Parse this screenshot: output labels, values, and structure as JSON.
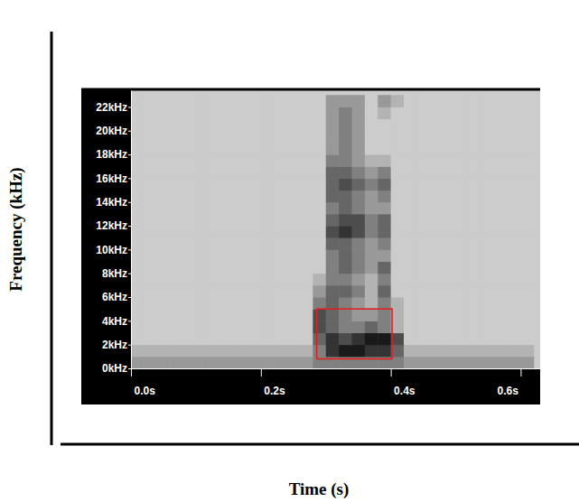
{
  "chart_data": {
    "type": "heatmap",
    "xlabel": "Time (s)",
    "ylabel": "Frequency (kHz)",
    "xlim": [
      0,
      0.63
    ],
    "ylim": [
      0,
      23.4
    ],
    "xticks": [
      {
        "value": 0,
        "label": "0.0s"
      },
      {
        "value": 0.2,
        "label": "0.2s"
      },
      {
        "value": 0.4,
        "label": "0.4s"
      },
      {
        "value": 0.6,
        "label": "0.6s"
      }
    ],
    "yticks": [
      {
        "value": 0,
        "label": "0kHz"
      },
      {
        "value": 2,
        "label": "2kHz"
      },
      {
        "value": 4,
        "label": "4kHz"
      },
      {
        "value": 6,
        "label": "6kHz"
      },
      {
        "value": 8,
        "label": "8kHz"
      },
      {
        "value": 10,
        "label": "10kHz"
      },
      {
        "value": 12,
        "label": "12kHz"
      },
      {
        "value": 14,
        "label": "14kHz"
      },
      {
        "value": 16,
        "label": "16kHz"
      },
      {
        "value": 18,
        "label": "18kHz"
      },
      {
        "value": 20,
        "label": "20kHz"
      },
      {
        "value": 22,
        "label": "22kHz"
      }
    ],
    "x": [
      0.01,
      0.03,
      0.05,
      0.07,
      0.09,
      0.11,
      0.13,
      0.15,
      0.17,
      0.19,
      0.21,
      0.23,
      0.25,
      0.27,
      0.29,
      0.31,
      0.33,
      0.35,
      0.37,
      0.39,
      0.41,
      0.43,
      0.45,
      0.47,
      0.49,
      0.51,
      0.53,
      0.55,
      0.57,
      0.59,
      0.61
    ],
    "y": [
      0.5,
      1.5,
      2.5,
      3.5,
      4.5,
      5.5,
      6.5,
      7.5,
      8.5,
      9.5,
      10.5,
      11.5,
      12.5,
      13.5,
      14.5,
      15.5,
      16.5,
      17.5,
      18.5,
      19.5,
      20.5,
      21.5,
      22.5
    ],
    "zlim": [
      0,
      10
    ],
    "cells": [
      [
        4,
        4,
        4,
        4,
        4,
        4,
        4,
        4,
        4,
        4,
        4,
        4,
        4,
        4,
        5,
        5,
        5,
        5,
        5,
        5,
        5,
        4,
        4,
        4,
        4,
        4,
        4,
        4,
        4,
        4,
        4
      ],
      [
        3,
        3,
        3,
        3,
        3,
        3,
        3,
        3,
        3,
        3,
        3,
        3,
        3,
        3,
        5,
        8,
        9,
        9,
        8,
        8,
        6,
        3,
        3,
        3,
        3,
        3,
        3,
        3,
        3,
        3,
        3
      ],
      [
        2,
        2,
        2,
        2,
        2,
        2,
        2,
        2,
        2,
        2,
        2,
        2,
        2,
        2,
        6,
        8,
        7,
        8,
        9,
        9,
        7,
        2,
        2,
        2,
        2,
        2,
        2,
        2,
        2,
        2,
        2
      ],
      [
        2,
        2,
        2,
        2,
        2,
        2,
        2,
        2,
        2,
        2,
        2,
        2,
        2,
        2,
        7,
        6,
        5,
        5,
        6,
        5,
        3,
        2,
        2,
        2,
        2,
        2,
        2,
        2,
        2,
        2,
        2
      ],
      [
        2,
        2,
        2,
        2,
        2,
        2,
        2,
        2,
        2,
        2,
        2,
        2,
        2,
        2,
        7,
        6,
        5,
        4,
        4,
        5,
        3,
        2,
        2,
        2,
        2,
        2,
        2,
        2,
        2,
        2,
        2
      ],
      [
        2,
        2,
        2,
        2,
        2,
        2,
        2,
        2,
        2,
        2,
        2,
        2,
        2,
        2,
        5,
        6,
        5,
        4,
        3,
        5,
        3,
        2,
        2,
        2,
        2,
        2,
        2,
        2,
        2,
        2,
        2
      ],
      [
        2,
        2,
        2,
        2,
        2,
        2,
        2,
        2,
        2,
        2,
        2,
        2,
        2,
        2,
        4,
        6,
        6,
        5,
        3,
        6,
        2,
        2,
        2,
        2,
        2,
        2,
        2,
        2,
        2,
        2,
        2
      ],
      [
        2,
        2,
        2,
        2,
        2,
        2,
        2,
        2,
        2,
        2,
        2,
        2,
        2,
        2,
        3,
        5,
        5,
        4,
        3,
        5,
        2,
        2,
        2,
        2,
        2,
        2,
        2,
        2,
        2,
        2,
        2
      ],
      [
        2,
        2,
        2,
        2,
        2,
        2,
        2,
        2,
        2,
        2,
        2,
        2,
        2,
        2,
        2,
        5,
        6,
        5,
        4,
        6,
        2,
        2,
        2,
        2,
        2,
        2,
        2,
        2,
        2,
        2,
        2
      ],
      [
        2,
        2,
        2,
        2,
        2,
        2,
        2,
        2,
        2,
        2,
        2,
        2,
        2,
        2,
        2,
        5,
        6,
        5,
        4,
        4,
        2,
        2,
        2,
        2,
        2,
        2,
        2,
        2,
        2,
        2,
        2
      ],
      [
        2,
        2,
        2,
        2,
        2,
        2,
        2,
        2,
        2,
        2,
        2,
        2,
        2,
        2,
        2,
        6,
        6,
        5,
        4,
        5,
        2,
        2,
        2,
        2,
        2,
        2,
        2,
        2,
        2,
        2,
        2
      ],
      [
        2,
        2,
        2,
        2,
        2,
        2,
        2,
        2,
        2,
        2,
        2,
        2,
        2,
        2,
        2,
        7,
        8,
        7,
        5,
        6,
        2,
        2,
        2,
        2,
        2,
        2,
        2,
        2,
        2,
        2,
        2
      ],
      [
        2,
        2,
        2,
        2,
        2,
        2,
        2,
        2,
        2,
        2,
        2,
        2,
        2,
        2,
        2,
        6,
        7,
        7,
        5,
        6,
        2,
        2,
        2,
        2,
        2,
        2,
        2,
        2,
        2,
        2,
        2
      ],
      [
        2,
        2,
        2,
        2,
        2,
        2,
        2,
        2,
        2,
        2,
        2,
        2,
        2,
        2,
        2,
        5,
        6,
        5,
        4,
        4,
        2,
        2,
        2,
        2,
        2,
        2,
        2,
        2,
        2,
        2,
        2
      ],
      [
        2,
        2,
        2,
        2,
        2,
        2,
        2,
        2,
        2,
        2,
        2,
        2,
        2,
        2,
        2,
        6,
        6,
        5,
        4,
        5,
        2,
        2,
        2,
        2,
        2,
        2,
        2,
        2,
        2,
        2,
        2
      ],
      [
        2,
        2,
        2,
        2,
        2,
        2,
        2,
        2,
        2,
        2,
        2,
        2,
        2,
        2,
        2,
        6,
        7,
        6,
        5,
        6,
        2,
        2,
        2,
        2,
        2,
        2,
        2,
        2,
        2,
        2,
        2
      ],
      [
        2,
        2,
        2,
        2,
        2,
        2,
        2,
        2,
        2,
        2,
        2,
        2,
        2,
        2,
        2,
        6,
        6,
        5,
        4,
        5,
        2,
        2,
        2,
        2,
        2,
        2,
        2,
        2,
        2,
        2,
        2
      ],
      [
        2,
        2,
        2,
        2,
        2,
        2,
        2,
        2,
        2,
        2,
        2,
        2,
        2,
        2,
        2,
        5,
        5,
        4,
        3,
        3,
        2,
        2,
        2,
        2,
        2,
        2,
        2,
        2,
        2,
        2,
        2
      ],
      [
        2,
        2,
        2,
        2,
        2,
        2,
        2,
        2,
        2,
        2,
        2,
        2,
        2,
        2,
        2,
        4,
        5,
        4,
        2,
        2,
        2,
        2,
        2,
        2,
        2,
        2,
        2,
        2,
        2,
        2,
        2
      ],
      [
        2,
        2,
        2,
        2,
        2,
        2,
        2,
        2,
        2,
        2,
        2,
        2,
        2,
        2,
        2,
        4,
        5,
        4,
        2,
        2,
        2,
        2,
        2,
        2,
        2,
        2,
        2,
        2,
        2,
        2,
        2
      ],
      [
        2,
        2,
        2,
        2,
        2,
        2,
        2,
        2,
        2,
        2,
        2,
        2,
        2,
        2,
        2,
        4,
        5,
        4,
        2,
        2,
        2,
        2,
        2,
        2,
        2,
        2,
        2,
        2,
        2,
        2,
        2
      ],
      [
        2,
        2,
        2,
        2,
        2,
        2,
        2,
        2,
        2,
        2,
        2,
        2,
        2,
        2,
        2,
        4,
        5,
        4,
        2,
        3,
        2,
        2,
        2,
        2,
        2,
        2,
        2,
        2,
        2,
        2,
        2
      ],
      [
        2,
        2,
        2,
        2,
        2,
        2,
        2,
        2,
        2,
        2,
        2,
        2,
        2,
        2,
        2,
        4,
        4,
        4,
        2,
        4,
        3,
        2,
        2,
        2,
        2,
        2,
        2,
        2,
        2,
        2,
        2
      ]
    ],
    "annotations": [
      {
        "x": [
          0.286,
          0.402
        ],
        "y": [
          0.8,
          5.0
        ],
        "color": "#e02020"
      }
    ]
  }
}
